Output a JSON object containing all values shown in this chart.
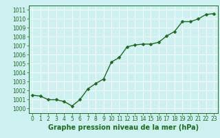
{
  "x": [
    0,
    1,
    2,
    3,
    4,
    5,
    6,
    7,
    8,
    9,
    10,
    11,
    12,
    13,
    14,
    15,
    16,
    17,
    18,
    19,
    20,
    21,
    22,
    23
  ],
  "y": [
    1001.5,
    1001.4,
    1001.0,
    1001.0,
    1000.8,
    1000.3,
    1001.0,
    1002.2,
    1002.8,
    1003.3,
    1005.2,
    1005.7,
    1006.9,
    1007.1,
    1007.2,
    1007.2,
    1007.4,
    1008.1,
    1008.6,
    1009.7,
    1009.7,
    1010.0,
    1010.5,
    1010.6
  ],
  "line_color": "#1a6b1a",
  "marker_color": "#1a6b1a",
  "bg_color": "#cdf0f0",
  "grid_color": "#ffffff",
  "xlabel": "Graphe pression niveau de la mer (hPa)",
  "ylim": [
    999.5,
    1011.5
  ],
  "xlim": [
    -0.5,
    23.5
  ],
  "yticks": [
    1000,
    1001,
    1002,
    1003,
    1004,
    1005,
    1006,
    1007,
    1008,
    1009,
    1010,
    1011
  ],
  "xticks": [
    0,
    1,
    2,
    3,
    4,
    5,
    6,
    7,
    8,
    9,
    10,
    11,
    12,
    13,
    14,
    15,
    16,
    17,
    18,
    19,
    20,
    21,
    22,
    23
  ],
  "tick_fontsize": 5.5,
  "xlabel_fontsize": 7,
  "line_width": 1.0,
  "marker_size": 2.5
}
